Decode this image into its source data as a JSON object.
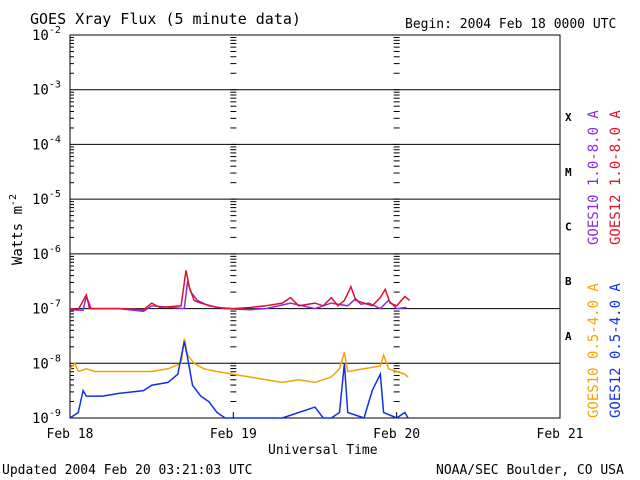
{
  "chart_data": {
    "type": "line",
    "title": "GOES Xray Flux (5 minute data)",
    "begin_label": "Begin:  2004 Feb 18 0000 UTC",
    "xlabel": "Universal Time",
    "ylabel": "Watts m",
    "ylabel_sup": "-2",
    "x_ticks": [
      "Feb 18",
      "Feb 19",
      "Feb 20",
      "Feb 21"
    ],
    "x_range_days": [
      0,
      3
    ],
    "yscale": "log",
    "ylim_exp": [
      -9,
      -2
    ],
    "y_ticks": [
      {
        "base": "10",
        "exp": "-2"
      },
      {
        "base": "10",
        "exp": "-3"
      },
      {
        "base": "10",
        "exp": "-4"
      },
      {
        "base": "10",
        "exp": "-5"
      },
      {
        "base": "10",
        "exp": "-6"
      },
      {
        "base": "10",
        "exp": "-7"
      },
      {
        "base": "10",
        "exp": "-8"
      },
      {
        "base": "10",
        "exp": "-9"
      }
    ],
    "flare_classes": [
      "X",
      "M",
      "C",
      "B",
      "A"
    ],
    "legend": [
      {
        "text": "GOES10 1.0-8.0 A",
        "color": "#8a2be2"
      },
      {
        "text": "GOES12 1.0-8.0 A",
        "color": "#e0102a"
      },
      {
        "text": "GOES10 0.5-4.0 A",
        "color": "#f5a300"
      },
      {
        "text": "GOES12 0.5-4.0 A",
        "color": "#1030e8"
      }
    ],
    "series": [
      {
        "key": "g10_long",
        "color": "#8a2be2",
        "points": [
          [
            0,
            -7.02
          ],
          [
            0.08,
            -7.03
          ],
          [
            0.1,
            -6.78
          ],
          [
            0.13,
            -7.0
          ],
          [
            0.3,
            -7.0
          ],
          [
            0.45,
            -7.05
          ],
          [
            0.5,
            -6.95
          ],
          [
            0.7,
            -7.0
          ],
          [
            0.72,
            -6.5
          ],
          [
            0.74,
            -6.7
          ],
          [
            0.78,
            -6.85
          ],
          [
            0.85,
            -6.95
          ],
          [
            0.95,
            -7.0
          ],
          [
            1.1,
            -7.02
          ],
          [
            1.2,
            -7.0
          ],
          [
            1.35,
            -6.9
          ],
          [
            1.5,
            -7.0
          ],
          [
            1.6,
            -6.9
          ],
          [
            1.7,
            -6.95
          ],
          [
            1.75,
            -6.82
          ],
          [
            1.78,
            -6.92
          ],
          [
            1.83,
            -6.9
          ],
          [
            1.9,
            -7.0
          ],
          [
            1.95,
            -6.85
          ],
          [
            2.0,
            -7.0
          ],
          [
            2.06,
            -6.98
          ]
        ]
      },
      {
        "key": "g12_long",
        "color": "#e0102a",
        "points": [
          [
            0,
            -7.0
          ],
          [
            0.05,
            -7.02
          ],
          [
            0.1,
            -6.75
          ],
          [
            0.12,
            -7.0
          ],
          [
            0.3,
            -7.0
          ],
          [
            0.45,
            -7.02
          ],
          [
            0.5,
            -6.9
          ],
          [
            0.55,
            -6.98
          ],
          [
            0.68,
            -6.95
          ],
          [
            0.71,
            -6.3
          ],
          [
            0.73,
            -6.6
          ],
          [
            0.76,
            -6.85
          ],
          [
            0.8,
            -6.9
          ],
          [
            0.9,
            -6.98
          ],
          [
            1.0,
            -7.0
          ],
          [
            1.1,
            -6.98
          ],
          [
            1.2,
            -6.95
          ],
          [
            1.3,
            -6.9
          ],
          [
            1.35,
            -6.8
          ],
          [
            1.4,
            -6.95
          ],
          [
            1.5,
            -6.9
          ],
          [
            1.55,
            -6.95
          ],
          [
            1.6,
            -6.8
          ],
          [
            1.64,
            -6.95
          ],
          [
            1.68,
            -6.85
          ],
          [
            1.72,
            -6.6
          ],
          [
            1.75,
            -6.85
          ],
          [
            1.8,
            -6.9
          ],
          [
            1.85,
            -6.95
          ],
          [
            1.9,
            -6.8
          ],
          [
            1.93,
            -6.65
          ],
          [
            1.96,
            -6.9
          ],
          [
            2.0,
            -6.95
          ],
          [
            2.05,
            -6.78
          ],
          [
            2.08,
            -6.85
          ]
        ]
      },
      {
        "key": "g10_short",
        "color": "#f5a300",
        "points": [
          [
            0,
            -8.1
          ],
          [
            0.03,
            -8.0
          ],
          [
            0.05,
            -8.15
          ],
          [
            0.1,
            -8.1
          ],
          [
            0.15,
            -8.15
          ],
          [
            0.25,
            -8.15
          ],
          [
            0.4,
            -8.15
          ],
          [
            0.5,
            -8.15
          ],
          [
            0.6,
            -8.1
          ],
          [
            0.68,
            -8.0
          ],
          [
            0.7,
            -7.55
          ],
          [
            0.72,
            -7.85
          ],
          [
            0.76,
            -8.0
          ],
          [
            0.82,
            -8.1
          ],
          [
            0.9,
            -8.15
          ],
          [
            1.0,
            -8.2
          ],
          [
            1.1,
            -8.25
          ],
          [
            1.2,
            -8.3
          ],
          [
            1.3,
            -8.35
          ],
          [
            1.4,
            -8.3
          ],
          [
            1.5,
            -8.35
          ],
          [
            1.6,
            -8.25
          ],
          [
            1.65,
            -8.1
          ],
          [
            1.68,
            -7.8
          ],
          [
            1.7,
            -8.15
          ],
          [
            1.8,
            -8.1
          ],
          [
            1.9,
            -8.05
          ],
          [
            1.92,
            -7.85
          ],
          [
            1.95,
            -8.1
          ],
          [
            2.0,
            -8.15
          ],
          [
            2.05,
            -8.2
          ],
          [
            2.07,
            -8.25
          ]
        ]
      },
      {
        "key": "g12_short",
        "color": "#1030e8",
        "points": [
          [
            0,
            -9.0
          ],
          [
            0.05,
            -8.9
          ],
          [
            0.08,
            -8.5
          ],
          [
            0.1,
            -8.6
          ],
          [
            0.2,
            -8.6
          ],
          [
            0.3,
            -8.55
          ],
          [
            0.45,
            -8.5
          ],
          [
            0.5,
            -8.4
          ],
          [
            0.6,
            -8.35
          ],
          [
            0.66,
            -8.2
          ],
          [
            0.7,
            -7.6
          ],
          [
            0.72,
            -7.9
          ],
          [
            0.75,
            -8.4
          ],
          [
            0.8,
            -8.6
          ],
          [
            0.85,
            -8.7
          ],
          [
            0.9,
            -8.9
          ],
          [
            0.95,
            -9.0
          ],
          [
            1.0,
            -9.1
          ],
          [
            1.05,
            -9.0
          ],
          [
            1.1,
            -9.0
          ],
          [
            1.2,
            -9.1
          ],
          [
            1.3,
            -9.0
          ],
          [
            1.4,
            -8.9
          ],
          [
            1.5,
            -8.8
          ],
          [
            1.55,
            -9.0
          ],
          [
            1.6,
            -9.1
          ],
          [
            1.65,
            -8.9
          ],
          [
            1.68,
            -8.0
          ],
          [
            1.7,
            -8.9
          ],
          [
            1.8,
            -9.1
          ],
          [
            1.85,
            -8.5
          ],
          [
            1.9,
            -8.2
          ],
          [
            1.92,
            -8.9
          ],
          [
            2.0,
            -9.0
          ],
          [
            2.05,
            -8.9
          ],
          [
            2.07,
            -9.0
          ]
        ]
      }
    ]
  },
  "footer": {
    "updated": "Updated 2004 Feb 20 03:21:03 UTC",
    "source": "NOAA/SEC Boulder, CO USA"
  }
}
